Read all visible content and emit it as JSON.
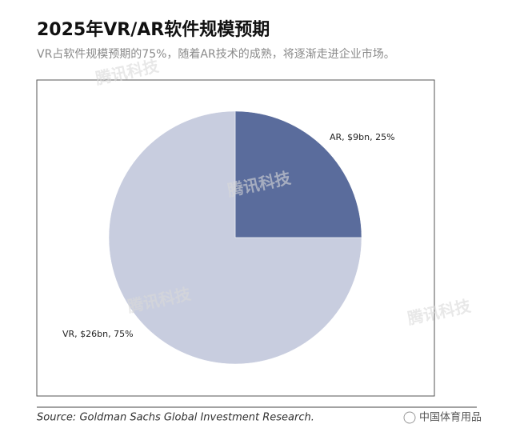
{
  "chart_data": {
    "type": "pie",
    "title": "2025年VR/AR软件规模预期",
    "subtitle": "VR占软件规模预期的75%，随着AR技术的成熟，将逐渐走进企业市场。",
    "categories": [
      "AR",
      "VR"
    ],
    "values": [
      25,
      75
    ],
    "value_labels": [
      "AR, $9bn, 25%",
      "VR, $26bn, 75%"
    ],
    "colors": [
      "#5a6c9c",
      "#c8cddf"
    ],
    "source": "Source: Goldman Sachs Global Investment Research.",
    "watermarks": [
      "腾讯科技",
      "腾讯科技",
      "腾讯科技",
      "腾讯科技"
    ],
    "footer_brand": "中国体育用品"
  }
}
